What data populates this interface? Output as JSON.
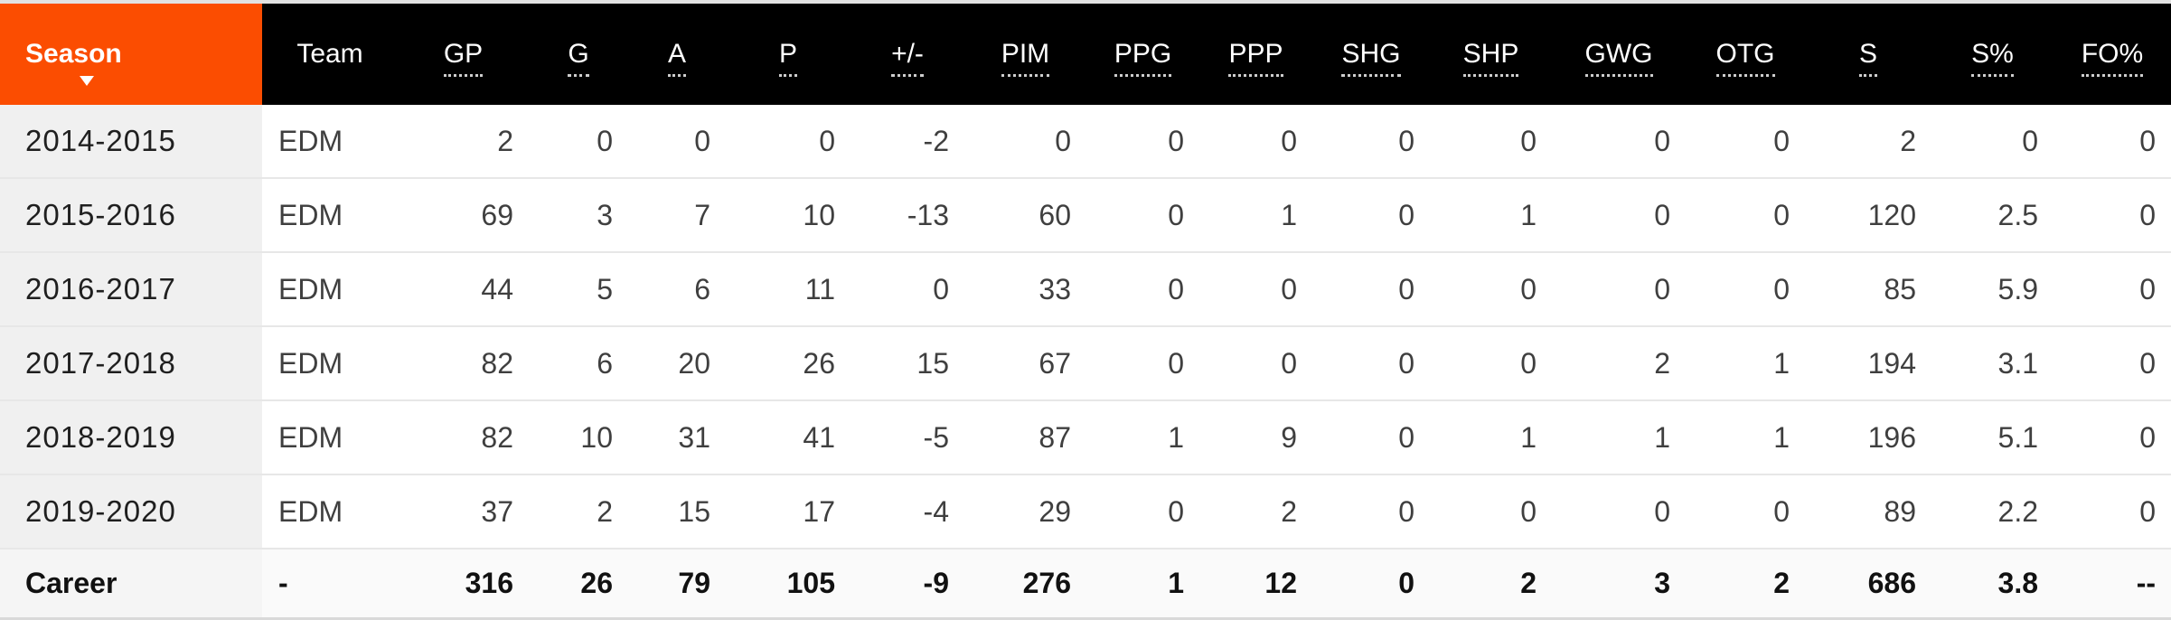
{
  "colors": {
    "accent_orange": "#fb4d01",
    "header_bg": "#000000",
    "header_text": "#ffffff",
    "season_column_bg": "#f0f0f0",
    "career_row_bg": "#fafafa",
    "row_divider": "#e7e7e7",
    "bottom_border": "#d9d9d9",
    "body_text": "#3f3f3f",
    "season_text": "#1f1f1f"
  },
  "table": {
    "sort": {
      "column": "Season",
      "direction": "descending"
    },
    "columns": [
      {
        "label": "Season",
        "underlined": false,
        "sorted": true
      },
      {
        "label": "Team",
        "underlined": false
      },
      {
        "label": "GP",
        "underlined": true
      },
      {
        "label": "G",
        "underlined": true
      },
      {
        "label": "A",
        "underlined": true
      },
      {
        "label": "P",
        "underlined": true
      },
      {
        "label": "+/-",
        "underlined": true
      },
      {
        "label": "PIM",
        "underlined": true
      },
      {
        "label": "PPG",
        "underlined": true
      },
      {
        "label": "PPP",
        "underlined": true
      },
      {
        "label": "SHG",
        "underlined": true
      },
      {
        "label": "SHP",
        "underlined": true
      },
      {
        "label": "GWG",
        "underlined": true
      },
      {
        "label": "OTG",
        "underlined": true
      },
      {
        "label": "S",
        "underlined": true
      },
      {
        "label": "S%",
        "underlined": true
      },
      {
        "label": "FO%",
        "underlined": true
      }
    ],
    "rows": [
      {
        "is_career": false,
        "cells": [
          "2014-2015",
          "EDM",
          "2",
          "0",
          "0",
          "0",
          "-2",
          "0",
          "0",
          "0",
          "0",
          "0",
          "0",
          "0",
          "2",
          "0",
          "0"
        ]
      },
      {
        "is_career": false,
        "cells": [
          "2015-2016",
          "EDM",
          "69",
          "3",
          "7",
          "10",
          "-13",
          "60",
          "0",
          "1",
          "0",
          "1",
          "0",
          "0",
          "120",
          "2.5",
          "0"
        ]
      },
      {
        "is_career": false,
        "cells": [
          "2016-2017",
          "EDM",
          "44",
          "5",
          "6",
          "11",
          "0",
          "33",
          "0",
          "0",
          "0",
          "0",
          "0",
          "0",
          "85",
          "5.9",
          "0"
        ]
      },
      {
        "is_career": false,
        "cells": [
          "2017-2018",
          "EDM",
          "82",
          "6",
          "20",
          "26",
          "15",
          "67",
          "0",
          "0",
          "0",
          "0",
          "2",
          "1",
          "194",
          "3.1",
          "0"
        ]
      },
      {
        "is_career": false,
        "cells": [
          "2018-2019",
          "EDM",
          "82",
          "10",
          "31",
          "41",
          "-5",
          "87",
          "1",
          "9",
          "0",
          "1",
          "1",
          "1",
          "196",
          "5.1",
          "0"
        ]
      },
      {
        "is_career": false,
        "cells": [
          "2019-2020",
          "EDM",
          "37",
          "2",
          "15",
          "17",
          "-4",
          "29",
          "0",
          "2",
          "0",
          "0",
          "0",
          "0",
          "89",
          "2.2",
          "0"
        ]
      },
      {
        "is_career": true,
        "cells": [
          "Career",
          "-",
          "316",
          "26",
          "79",
          "105",
          "-9",
          "276",
          "1",
          "12",
          "0",
          "2",
          "3",
          "2",
          "686",
          "3.8",
          "--"
        ]
      }
    ]
  }
}
